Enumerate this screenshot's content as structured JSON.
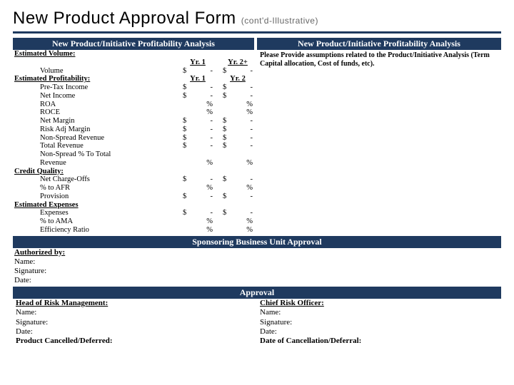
{
  "header": {
    "title": "New Product Approval Form",
    "subtitle": "(cont'd-Illustrative)"
  },
  "colors": {
    "bar_bg": "#1f3a5f",
    "bar_text": "#ffffff",
    "page_bg": "#ffffff",
    "subtitle": "#666666"
  },
  "bars": {
    "left": "New Product/Initiative Profitability Analysis",
    "right": "New Product/Initiative Profitability Analysis",
    "sponsor": "Sponsoring Business Unit Approval",
    "approval": "Approval"
  },
  "right_note": "Please Provide assumptions related to the Product/Initiative Analysis (Term Capital allocation, Cost of funds, etc).",
  "table": {
    "col1": "Yr. 1",
    "col2": "Yr. 2+",
    "col1b": "Yr. 1",
    "col2b": "Yr. 2",
    "sections": {
      "est_vol": "Estimated Volume:",
      "volume": "Volume",
      "est_prof": "Estimated Profitability:",
      "pretax": "Pre-Tax Income",
      "netinc": "Net Income",
      "roa": "ROA",
      "roce": "ROCE",
      "netmargin": "Net Margin",
      "riskadj": "Risk Adj Margin",
      "nonspread": "Non-Spread Revenue",
      "totalrev": "Total Revenue",
      "nspct1": "Non-Spread % To Total",
      "nspct2": "Revenue",
      "credit": "Credit Quality:",
      "nco": "Net Charge-Offs",
      "pctafr": "% to AFR",
      "provision": "Provision",
      "estexp": "Estimated Expenses",
      "expenses": "Expenses",
      "pctama": "% to AMA",
      "effratio": "Efficiency Ratio"
    },
    "sym_dollar": "$",
    "sym_pct": "%",
    "dash": "-"
  },
  "auth": {
    "authby": "Authorized by:",
    "name": "Name:",
    "sig": "Signature:",
    "date": "Date:"
  },
  "final": {
    "left_head": "Head of Risk Management:",
    "right_head": "Chief Risk Officer:",
    "name": "Name:",
    "sig": "Signature:",
    "date": "Date:",
    "cancelled": "Product Cancelled/Deferred:",
    "cancel_date": "Date of Cancellation/Deferral:"
  }
}
